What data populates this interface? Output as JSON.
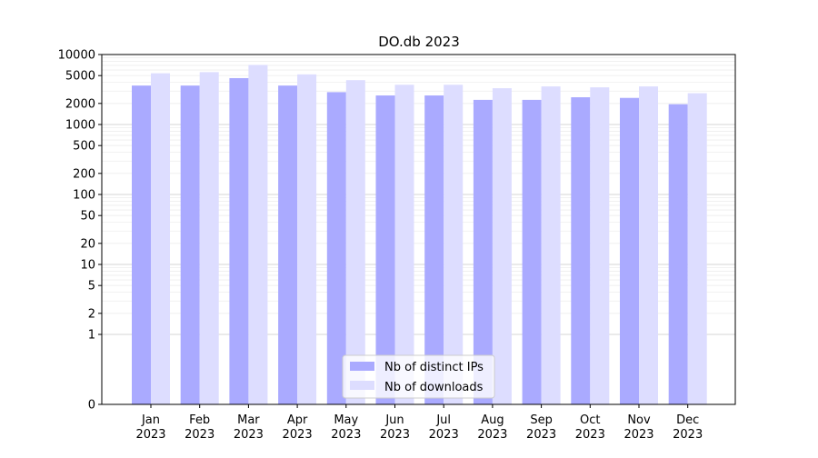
{
  "chart_data": {
    "type": "bar",
    "title": "DO.db 2023",
    "xlabel": "",
    "ylabel": "",
    "yscale": "symlog",
    "ylim": [
      0,
      10000
    ],
    "yticks": [
      0,
      1,
      2,
      5,
      10,
      20,
      50,
      100,
      200,
      500,
      1000,
      2000,
      5000,
      10000
    ],
    "grid": "horizontal",
    "legend_position": "bottom-center",
    "categories": [
      "Jan 2023",
      "Feb 2023",
      "Mar 2023",
      "Apr 2023",
      "May 2023",
      "Jun 2023",
      "Jul 2023",
      "Aug 2023",
      "Sep 2023",
      "Oct 2023",
      "Nov 2023",
      "Dec 2023"
    ],
    "category_labels": [
      [
        "Jan",
        "2023"
      ],
      [
        "Feb",
        "2023"
      ],
      [
        "Mar",
        "2023"
      ],
      [
        "Apr",
        "2023"
      ],
      [
        "May",
        "2023"
      ],
      [
        "Jun",
        "2023"
      ],
      [
        "Jul",
        "2023"
      ],
      [
        "Aug",
        "2023"
      ],
      [
        "Sep",
        "2023"
      ],
      [
        "Oct",
        "2023"
      ],
      [
        "Nov",
        "2023"
      ],
      [
        "Dec",
        "2023"
      ]
    ],
    "series": [
      {
        "name": "Nb of distinct IPs",
        "color": "#aaaaff",
        "values": [
          3600,
          3600,
          4600,
          3600,
          2900,
          2600,
          2600,
          2250,
          2250,
          2450,
          2400,
          1950
        ]
      },
      {
        "name": "Nb of downloads",
        "color": "#ddddff",
        "values": [
          5400,
          5600,
          7100,
          5200,
          4300,
          3700,
          3700,
          3300,
          3500,
          3400,
          3500,
          2800
        ]
      }
    ]
  }
}
